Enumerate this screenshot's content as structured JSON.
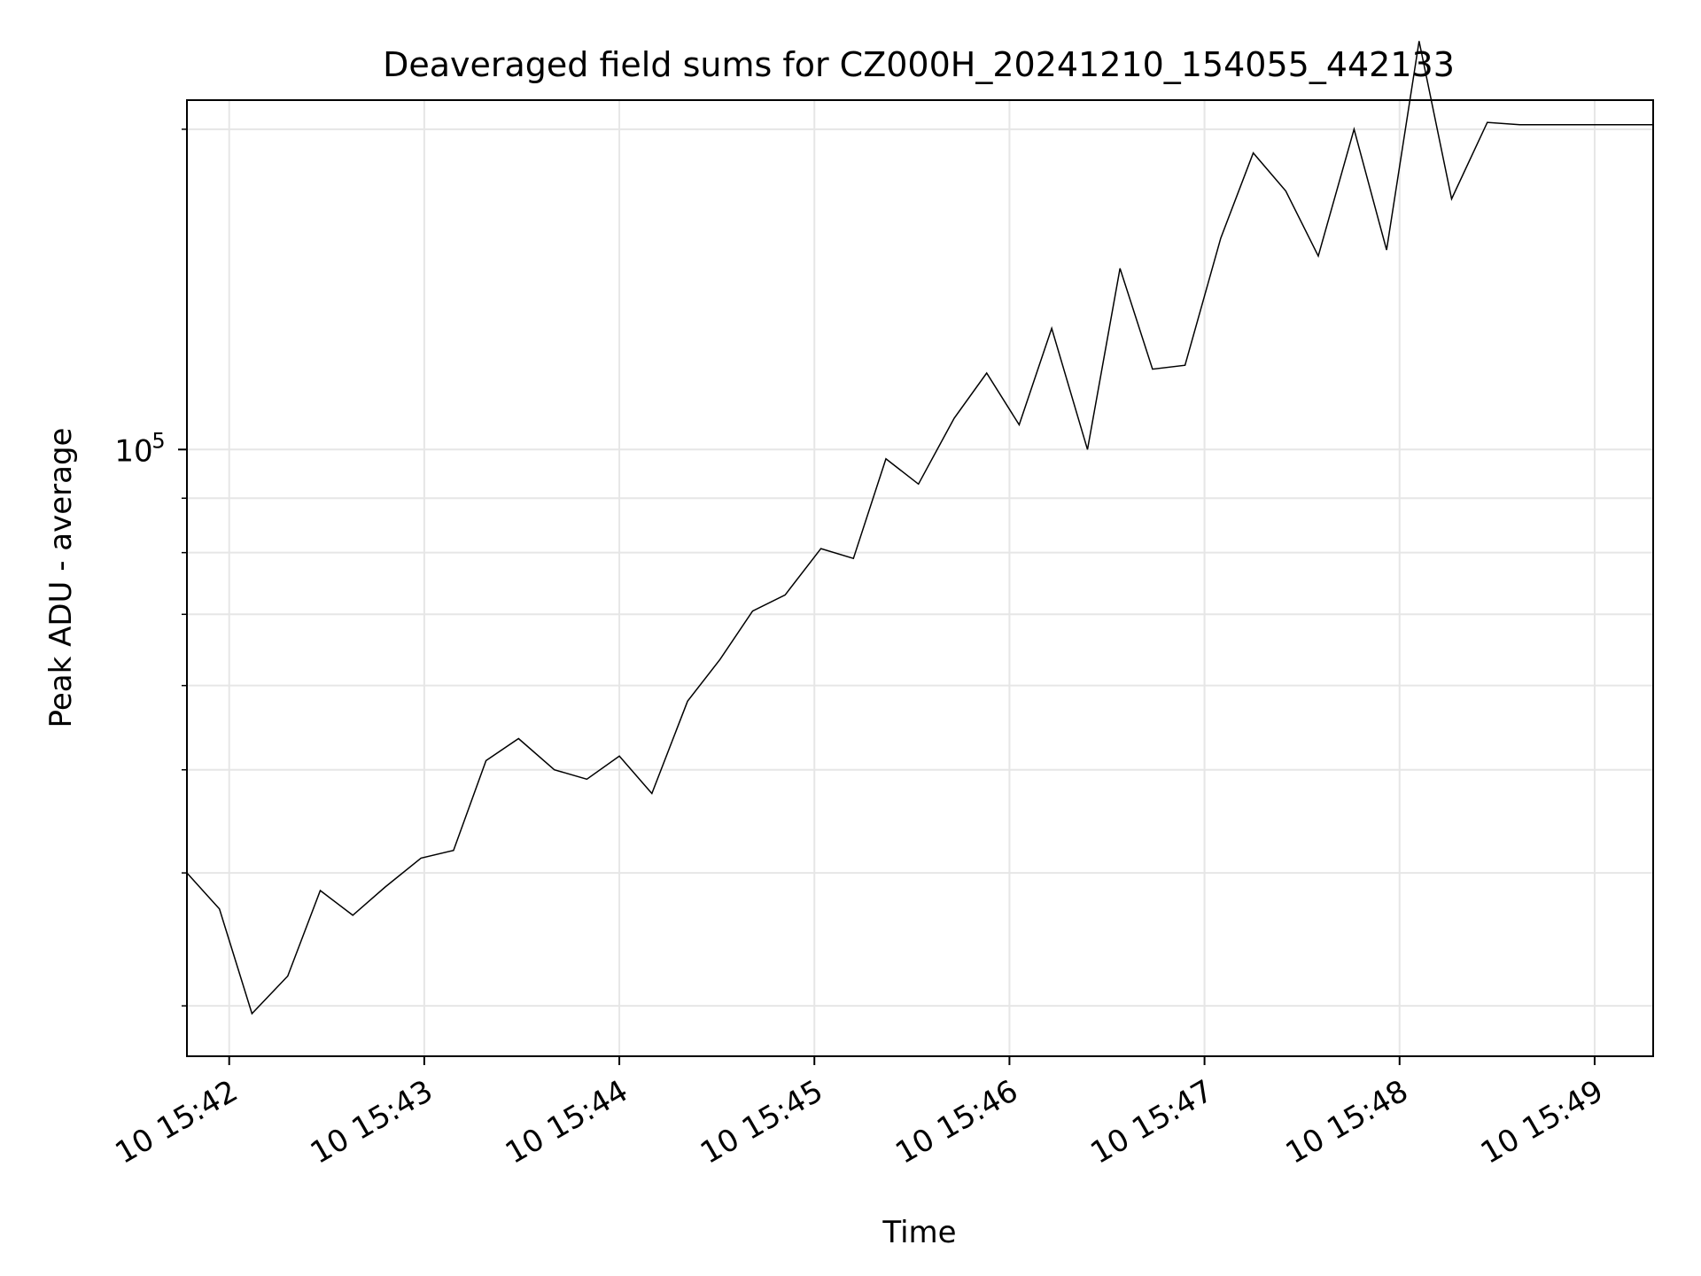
{
  "chart_data": {
    "type": "line",
    "title": "Deaveraged field sums for CZ000H_20241210_154055_442133",
    "xlabel": "Time",
    "ylabel": "Peak ADU - average",
    "yscale": "log",
    "ylim": [
      26900,
      213000
    ],
    "xlim": [
      "2024-12-10 15:41:47",
      "2024-12-10 15:49:18"
    ],
    "grid": true,
    "line_color": "#000000",
    "x_ticks": [
      "2024-12-10 15:42",
      "2024-12-10 15:43",
      "2024-12-10 15:44",
      "2024-12-10 15:45",
      "2024-12-10 15:46",
      "2024-12-10 15:47",
      "2024-12-10 15:48",
      "2024-12-10 15:49"
    ],
    "x_tick_labels": [
      "10 15:42",
      "10 15:43",
      "10 15:44",
      "10 15:45",
      "10 15:46",
      "10 15:47",
      "10 15:48",
      "10 15:49"
    ],
    "y_major_ticks": [
      100000
    ],
    "y_major_tick_label_base": "10",
    "y_major_tick_label_exp": "5",
    "y_minor_ticks": [
      30000,
      40000,
      50000,
      60000,
      70000,
      80000,
      90000,
      200000
    ],
    "series": [
      {
        "x": [
          "2024-12-10 15:41:47",
          "2024-12-10 15:41:57",
          "2024-12-10 15:42:07",
          "2024-12-10 15:42:18",
          "2024-12-10 15:42:28",
          "2024-12-10 15:42:38",
          "2024-12-10 15:42:48",
          "2024-12-10 15:42:59",
          "2024-12-10 15:43:09",
          "2024-12-10 15:43:19",
          "2024-12-10 15:43:29",
          "2024-12-10 15:43:40",
          "2024-12-10 15:43:50",
          "2024-12-10 15:44:00",
          "2024-12-10 15:44:10",
          "2024-12-10 15:44:21",
          "2024-12-10 15:44:31",
          "2024-12-10 15:44:41",
          "2024-12-10 15:44:51",
          "2024-12-10 15:45:02",
          "2024-12-10 15:45:12",
          "2024-12-10 15:45:22",
          "2024-12-10 15:45:32",
          "2024-12-10 15:45:43",
          "2024-12-10 15:45:53",
          "2024-12-10 15:46:03",
          "2024-12-10 15:46:13",
          "2024-12-10 15:46:24",
          "2024-12-10 15:46:34",
          "2024-12-10 15:46:44",
          "2024-12-10 15:46:54",
          "2024-12-10 15:47:05",
          "2024-12-10 15:47:15",
          "2024-12-10 15:47:25",
          "2024-12-10 15:47:35",
          "2024-12-10 15:47:46",
          "2024-12-10 15:47:56",
          "2024-12-10 15:48:06",
          "2024-12-10 15:48:16",
          "2024-12-10 15:48:27",
          "2024-12-10 15:48:37",
          "2024-12-10 15:49:18"
        ],
        "y": [
          40000,
          37000,
          29500,
          32000,
          38500,
          36500,
          38800,
          41300,
          42000,
          51000,
          53500,
          50000,
          49000,
          51500,
          47500,
          58000,
          63500,
          70500,
          73000,
          80700,
          79000,
          98000,
          92800,
          107000,
          118000,
          105500,
          130000,
          100000,
          148000,
          119000,
          120000,
          158000,
          190000,
          175000,
          152000,
          200000,
          154000,
          242000,
          172000,
          203000,
          202000,
          202000
        ]
      }
    ]
  }
}
